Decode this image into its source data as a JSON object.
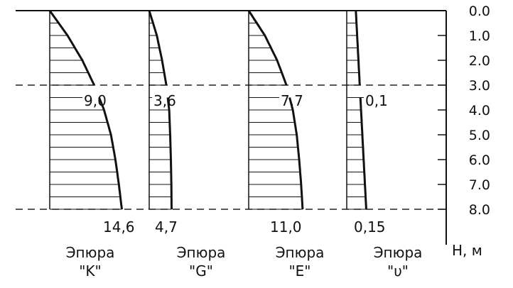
{
  "depth_axis": {
    "unit_label": "H, м",
    "ticks": [
      "0.0",
      "1.0",
      "2.0",
      "3.0",
      "4.0",
      "5.0",
      "6.0",
      "7.0",
      "8.0"
    ]
  },
  "layer_boundary_depth": 3.0,
  "diagrams": [
    {
      "title_line1": "Эпюра",
      "title_line2": "\"K\"",
      "profile": [
        [
          0.0,
          0
        ],
        [
          1.0,
          3.6
        ],
        [
          2.0,
          6.6
        ],
        [
          3.0,
          9.0
        ],
        [
          4.0,
          11.0
        ],
        [
          5.0,
          12.4
        ],
        [
          6.0,
          13.3
        ],
        [
          7.0,
          14.0
        ],
        [
          8.0,
          14.6
        ]
      ],
      "labels": {
        "mid": "9,0",
        "bottom": "14,6"
      }
    },
    {
      "title_line1": "Эпюра",
      "title_line2": "\"G\"",
      "profile": [
        [
          0.0,
          0
        ],
        [
          1.0,
          1.6
        ],
        [
          2.0,
          2.7
        ],
        [
          3.0,
          3.6
        ],
        [
          4.0,
          4.2
        ],
        [
          5.0,
          4.4
        ],
        [
          6.0,
          4.55
        ],
        [
          7.0,
          4.65
        ],
        [
          8.0,
          4.7
        ]
      ],
      "labels": {
        "mid": "3,6",
        "bottom": "4,7"
      }
    },
    {
      "title_line1": "Эпюра",
      "title_line2": "\"E\"",
      "profile": [
        [
          0.0,
          0
        ],
        [
          1.0,
          3.3
        ],
        [
          2.0,
          5.8
        ],
        [
          3.0,
          7.7
        ],
        [
          4.0,
          9.0
        ],
        [
          5.0,
          9.8
        ],
        [
          6.0,
          10.3
        ],
        [
          7.0,
          10.7
        ],
        [
          8.0,
          11.0
        ]
      ],
      "labels": {
        "mid": "7,7",
        "bottom": "11,0"
      }
    },
    {
      "title_line1": "Эпюра",
      "title_line2": "\"υ\"",
      "profile": [
        [
          0.0,
          0.07
        ],
        [
          3.0,
          0.1
        ],
        [
          8.0,
          0.15
        ]
      ],
      "labels": {
        "mid": "0,1",
        "bottom": "0,15"
      }
    }
  ]
}
